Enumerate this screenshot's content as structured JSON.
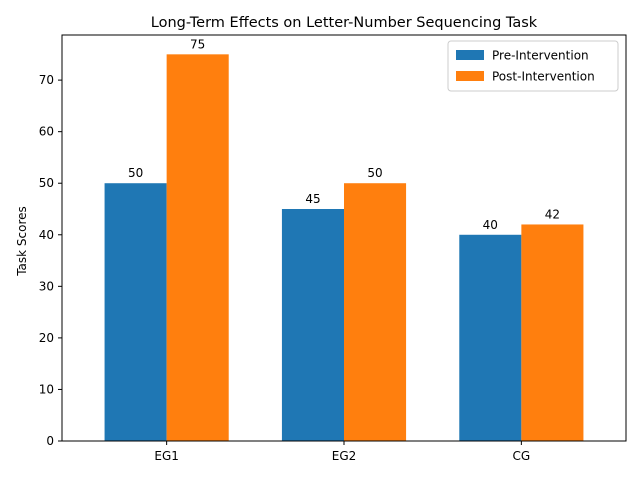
{
  "chart_data": {
    "type": "bar",
    "title": "Long-Term Effects on Letter-Number Sequencing Task",
    "xlabel": "",
    "ylabel": "Task Scores",
    "categories": [
      "EG1",
      "EG2",
      "CG"
    ],
    "series": [
      {
        "name": "Pre-Intervention",
        "values": [
          50,
          45,
          40
        ],
        "color": "#1f77b4"
      },
      {
        "name": "Post-Intervention",
        "values": [
          75,
          50,
          42
        ],
        "color": "#ff7f0e"
      }
    ],
    "ylim": [
      0,
      78.75
    ],
    "yticks": [
      0,
      10,
      20,
      30,
      40,
      50,
      60,
      70
    ],
    "grid": false,
    "legend_position": "top-right",
    "data_labels": true
  }
}
